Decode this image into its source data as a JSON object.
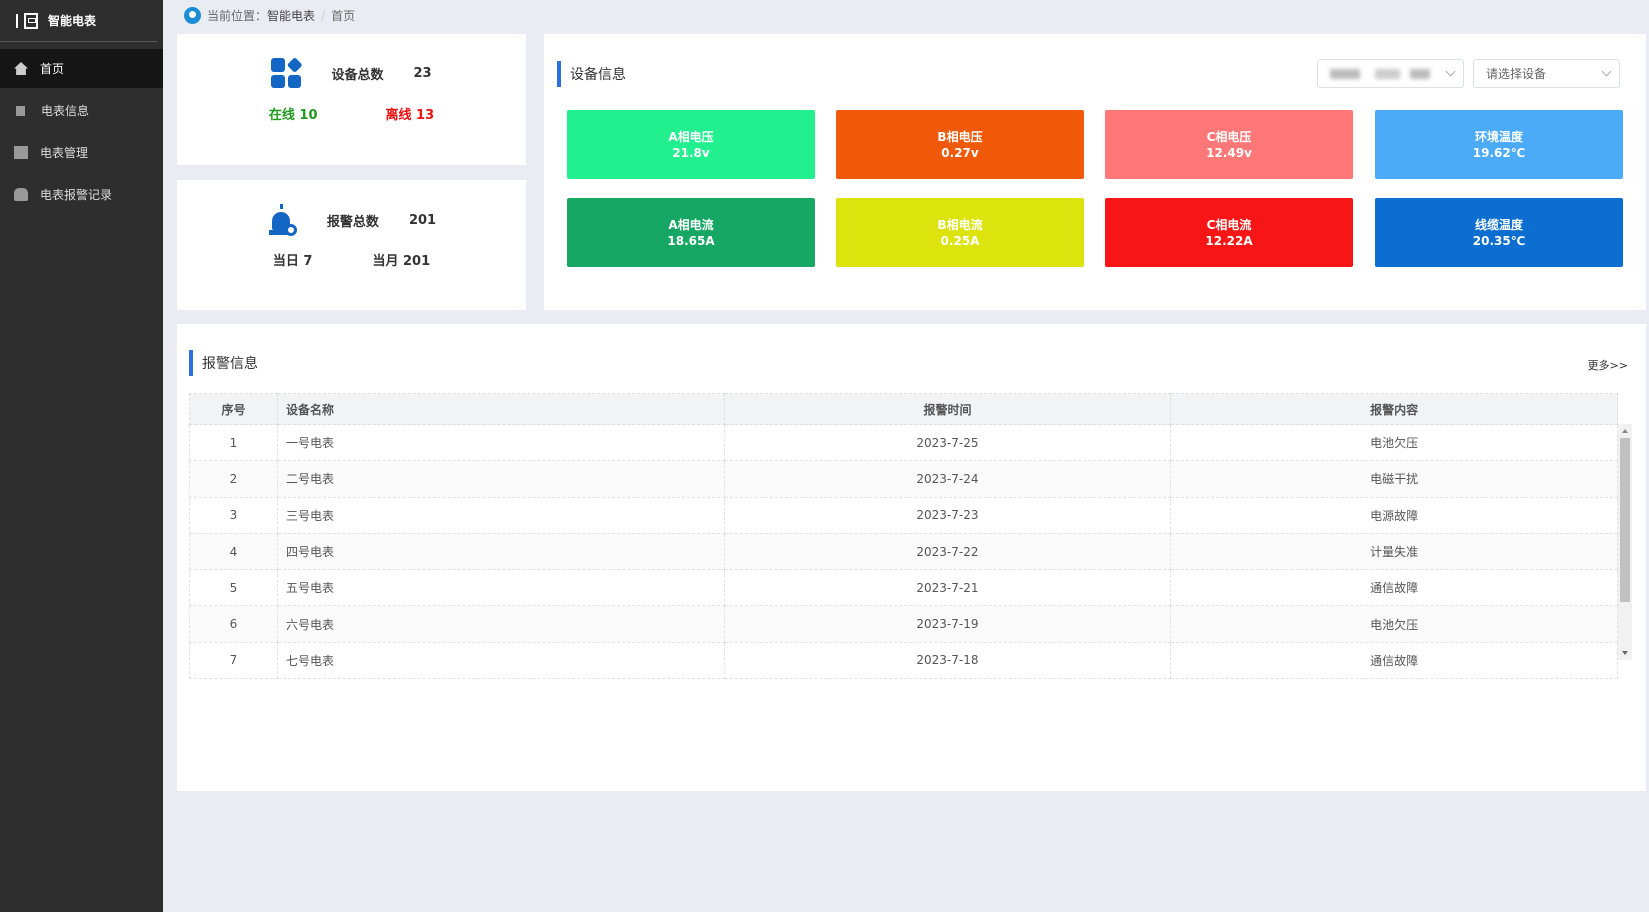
{
  "app": {
    "title": "智能电表"
  },
  "sidebar": {
    "items": [
      {
        "label": "首页",
        "icon": "home-icon",
        "active": true
      },
      {
        "label": "电表信息",
        "icon": "meter-icon"
      },
      {
        "label": "电表管理",
        "icon": "calendar-icon"
      },
      {
        "label": "电表报警记录",
        "icon": "bug-icon"
      }
    ]
  },
  "breadcrumb": {
    "prefix": "当前位置：",
    "parent": "智能电表",
    "sep": "/",
    "current": "首页"
  },
  "device_stats": {
    "label": "设备总数",
    "total": "23",
    "online": "在线 10",
    "offline": "离线 13",
    "online_color": "#1f9a1f",
    "offline_color": "#f01010"
  },
  "alarm_stats": {
    "label": "报警总数",
    "total": "201",
    "today": "当日 7",
    "month": "当月 201"
  },
  "device_info": {
    "title": "设备信息",
    "select1_value": "",
    "select2_placeholder": "请选择设备",
    "tiles": [
      {
        "label": "A相电压",
        "value": "21.8v",
        "color": "#22f08f"
      },
      {
        "label": "B相电压",
        "value": "0.27v",
        "color": "#ef5909"
      },
      {
        "label": "C相电压",
        "value": "12.49v",
        "color": "#ff7777"
      },
      {
        "label": "环境温度",
        "value": "19.62℃",
        "color": "#4cabf9"
      },
      {
        "label": "A相电流",
        "value": "18.65A",
        "color": "#17a764"
      },
      {
        "label": "B相电流",
        "value": "0.25A",
        "color": "#dce30d"
      },
      {
        "label": "C相电流",
        "value": "12.22A",
        "color": "#f81515"
      },
      {
        "label": "线缆温度",
        "value": "20.35℃",
        "color": "#0b6ed0"
      }
    ]
  },
  "alarms": {
    "title": "报警信息",
    "more": "更多>>",
    "columns": [
      "序号",
      "设备名称",
      "报警时间",
      "报警内容"
    ],
    "rows": [
      [
        "1",
        "一号电表",
        "2023-7-25",
        "电池欠压"
      ],
      [
        "2",
        "二号电表",
        "2023-7-24",
        "电磁干扰"
      ],
      [
        "3",
        "三号电表",
        "2023-7-23",
        "电源故障"
      ],
      [
        "4",
        "四号电表",
        "2023-7-22",
        "计量失准"
      ],
      [
        "5",
        "五号电表",
        "2023-7-21",
        "通信故障"
      ],
      [
        "6",
        "六号电表",
        "2023-7-19",
        "电池欠压"
      ],
      [
        "7",
        "七号电表",
        "2023-7-18",
        "通信故障"
      ]
    ]
  }
}
